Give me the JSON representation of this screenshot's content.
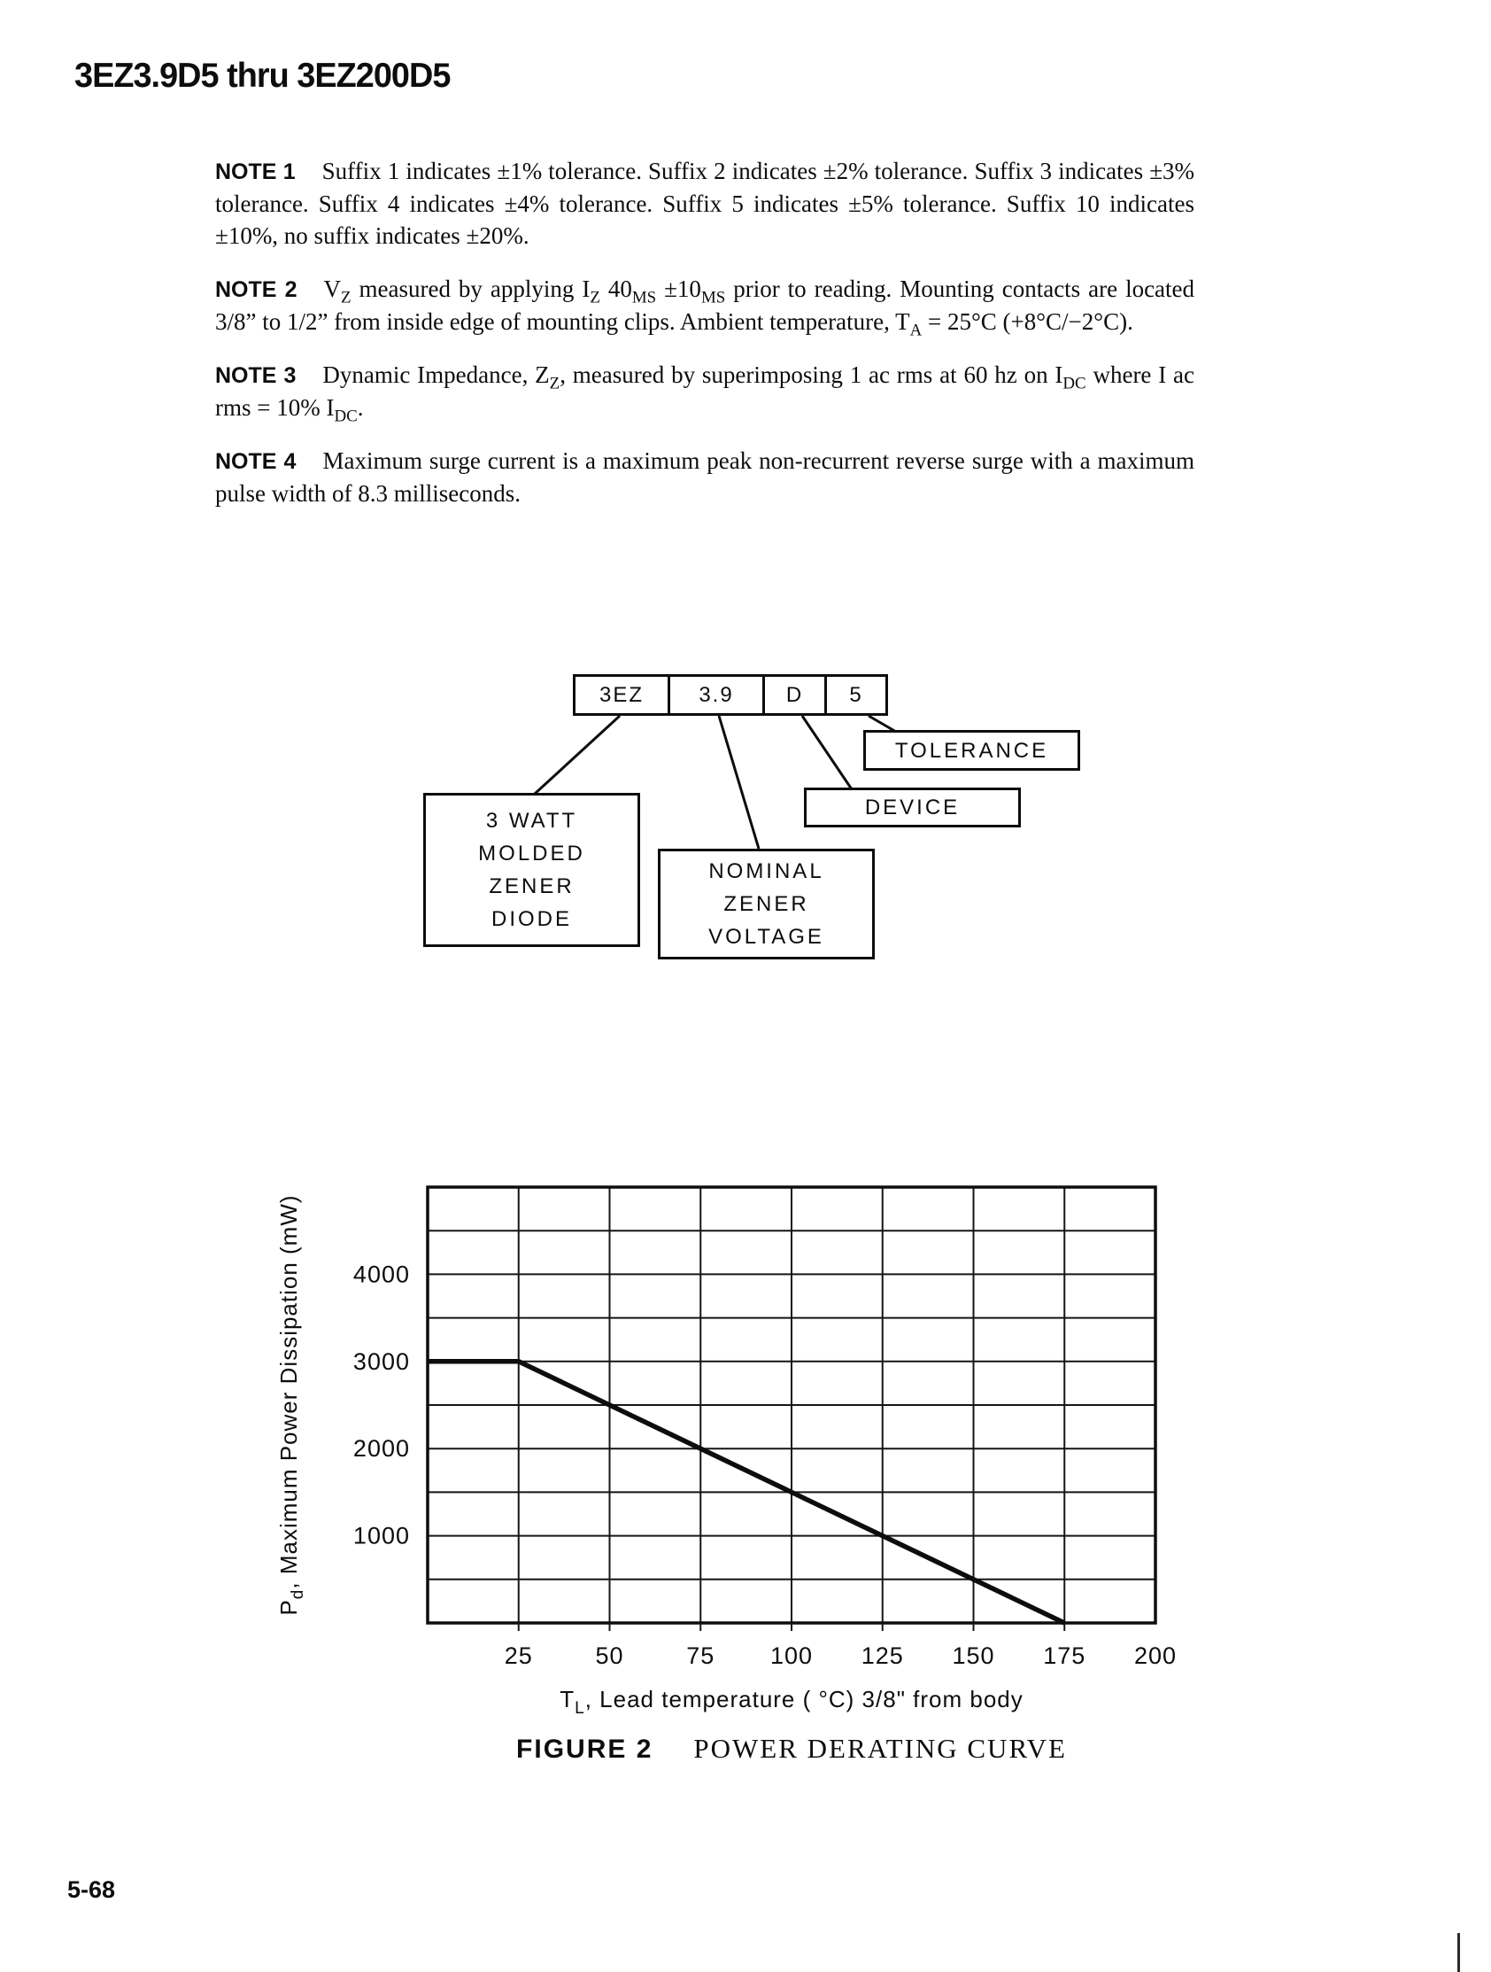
{
  "page": {
    "title": "3EZ3.9D5 thru 3EZ200D5",
    "page_number": "5-68"
  },
  "notes": [
    {
      "label": "NOTE 1",
      "html": "Suffix 1 indicates ±1% tolerance. Suffix 2 indicates ±2% tolerance. Suffix 3 indicates ±3% tolerance. Suffix 4 indicates ±4% tolerance. Suffix 5 indicates ±5% tolerance. Suffix 10 indicates ±10%, no suffix indicates ±20%."
    },
    {
      "label": "NOTE 2",
      "html": "V<sub>Z</sub> measured by applying I<sub>Z</sub> 40<sub>MS</sub> ±10<sub>MS</sub> prior to reading. Mounting contacts are located 3/8” to 1/2” from inside edge of mounting clips. Ambient temperature, T<sub>A</sub> = 25°C (+8°C/−2°C)."
    },
    {
      "label": "NOTE 3",
      "html": "Dynamic Impedance, Z<sub>Z</sub>, measured by superimposing 1 ac rms at 60 hz on I<sub>DC</sub> where I ac rms = 10% I<sub>DC</sub>."
    },
    {
      "label": "NOTE 4",
      "html": "Maximum surge current is a maximum peak non-recurrent reverse surge with a maximum pulse width of 8.3 milliseconds."
    }
  ],
  "diagram": {
    "segments": [
      "3EZ",
      "3.9",
      "D",
      "5"
    ],
    "tolerance_label": "TOLERANCE",
    "device_label": "DEVICE",
    "watt_label": "3 WATT\nMOLDED\nZENER\nDIODE",
    "nominal_label": "NOMINAL\nZENER\nVOLTAGE"
  },
  "chart_data": {
    "type": "line",
    "title": "POWER DERATING CURVE",
    "xlabel": {
      "prefix": "T",
      "sub": "L",
      "rest": ", Lead temperature ( °C) 3/8\" from body"
    },
    "ylabel": {
      "prefix": "P",
      "sub": "d",
      "rest": ", Maximum Power Dissipation (mW)"
    },
    "xlim": [
      0,
      200
    ],
    "ylim": [
      0,
      5000
    ],
    "x_grid_step": 25,
    "y_grid_step": 500,
    "grid": true,
    "legend": false,
    "x_ticks": [
      25,
      50,
      75,
      100,
      125,
      150,
      175,
      200
    ],
    "y_ticks": [
      1000,
      2000,
      3000,
      4000
    ],
    "series": [
      {
        "name": "power-derating-line",
        "points": [
          [
            0,
            3000
          ],
          [
            25,
            3000
          ],
          [
            175,
            0
          ]
        ]
      }
    ]
  },
  "figure": {
    "label": "FIGURE 2",
    "title": "POWER DERATING CURVE"
  }
}
